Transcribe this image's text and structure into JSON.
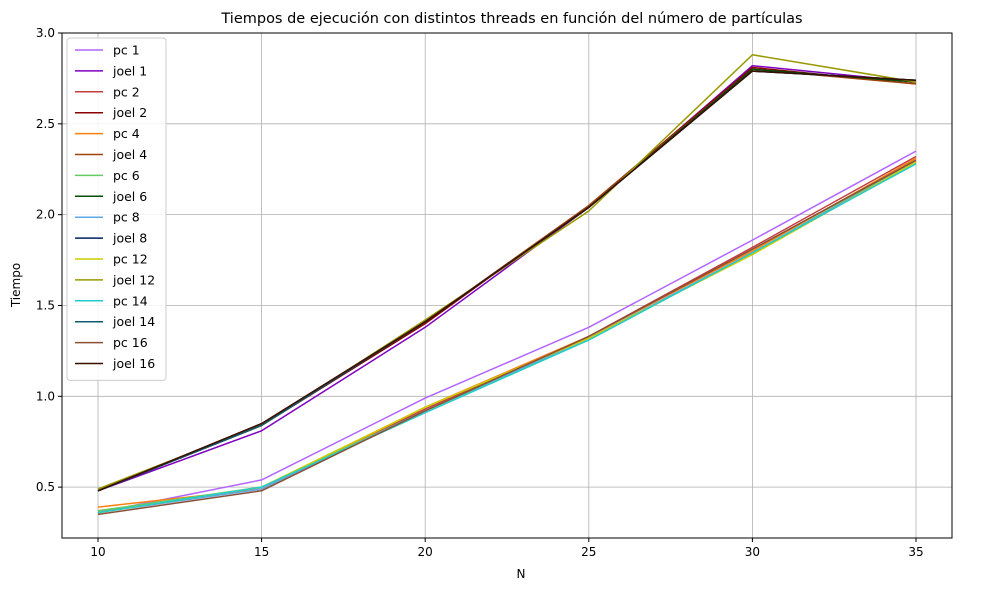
{
  "chart_data": {
    "type": "line",
    "title": "Tiempos de ejecución con distintos threads en función del número de partículas",
    "xlabel": "N",
    "ylabel": "Tiempo",
    "x": [
      10,
      15,
      20,
      25,
      30,
      35
    ],
    "xlim": [
      8.9,
      36.1
    ],
    "ylim": [
      0.22,
      3.0
    ],
    "xticks": [
      "10",
      "15",
      "20",
      "25",
      "30",
      "35"
    ],
    "yticks": [
      "0.5",
      "1.0",
      "1.5",
      "2.0",
      "2.5",
      "3.0"
    ],
    "grid": true,
    "legend_position": "top-left",
    "series": [
      {
        "name": "pc 1",
        "color": "#b266ff",
        "values": [
          0.36,
          0.54,
          0.99,
          1.38,
          1.86,
          2.35
        ]
      },
      {
        "name": "joel 1",
        "color": "#7f00bf",
        "values": [
          0.48,
          0.81,
          1.38,
          2.04,
          2.82,
          2.73
        ]
      },
      {
        "name": "pc 2",
        "color": "#c43c3c",
        "values": [
          0.37,
          0.49,
          0.93,
          1.33,
          1.82,
          2.32
        ]
      },
      {
        "name": "joel 2",
        "color": "#8b0000",
        "values": [
          0.48,
          0.84,
          1.4,
          2.05,
          2.81,
          2.72
        ]
      },
      {
        "name": "pc 4",
        "color": "#ff7f0e",
        "values": [
          0.39,
          0.49,
          0.94,
          1.33,
          1.8,
          2.31
        ]
      },
      {
        "name": "joel 4",
        "color": "#a0420a",
        "values": [
          0.48,
          0.85,
          1.41,
          2.05,
          2.8,
          2.72
        ]
      },
      {
        "name": "pc 6",
        "color": "#66cc66",
        "values": [
          0.37,
          0.5,
          0.92,
          1.31,
          1.79,
          2.3
        ]
      },
      {
        "name": "joel 6",
        "color": "#004d00",
        "values": [
          0.48,
          0.84,
          1.41,
          2.04,
          2.8,
          2.73
        ]
      },
      {
        "name": "pc 8",
        "color": "#5fa8e8",
        "values": [
          0.36,
          0.49,
          0.92,
          1.32,
          1.79,
          2.29
        ]
      },
      {
        "name": "joel 8",
        "color": "#00205b",
        "values": [
          0.48,
          0.84,
          1.41,
          2.04,
          2.79,
          2.74
        ]
      },
      {
        "name": "pc 12",
        "color": "#cccc00",
        "values": [
          0.36,
          0.5,
          0.94,
          1.32,
          1.78,
          2.29
        ]
      },
      {
        "name": "joel 12",
        "color": "#999900",
        "values": [
          0.49,
          0.84,
          1.42,
          2.02,
          2.88,
          2.73
        ]
      },
      {
        "name": "pc 14",
        "color": "#22cccc",
        "values": [
          0.36,
          0.5,
          0.91,
          1.31,
          1.79,
          2.28
        ]
      },
      {
        "name": "joel 14",
        "color": "#0f5c6e",
        "values": [
          0.48,
          0.84,
          1.41,
          2.04,
          2.79,
          2.74
        ]
      },
      {
        "name": "pc 16",
        "color": "#8b5034",
        "values": [
          0.35,
          0.48,
          0.92,
          1.33,
          1.81,
          2.3
        ]
      },
      {
        "name": "joel 16",
        "color": "#3a0e00",
        "values": [
          0.48,
          0.85,
          1.41,
          2.04,
          2.79,
          2.74
        ]
      }
    ]
  }
}
